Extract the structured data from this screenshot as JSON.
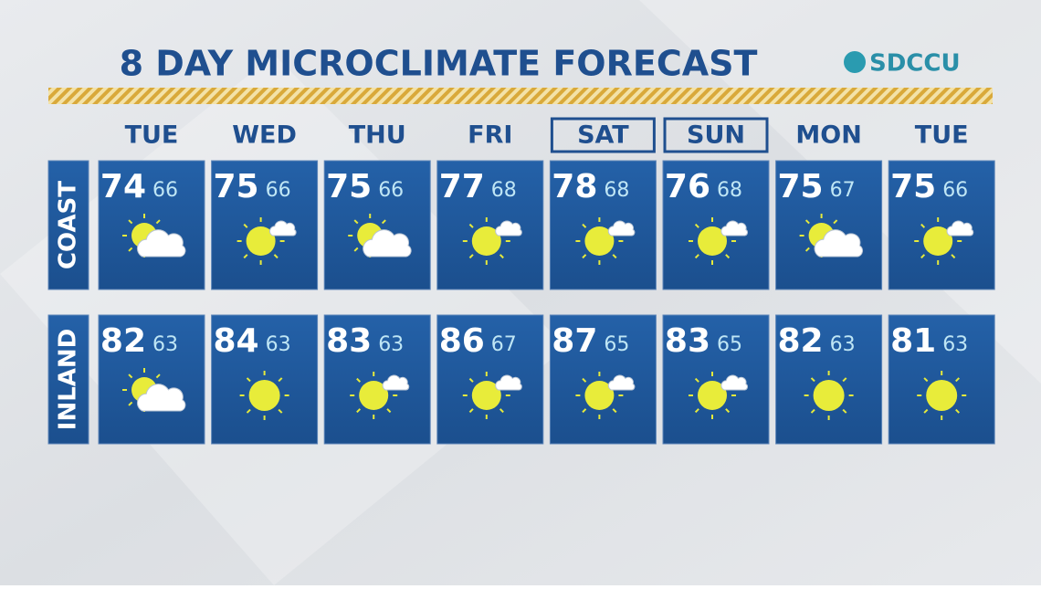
{
  "header": {
    "title": "8 DAY MICROCLIMATE FORECAST",
    "logo": "SDCCU"
  },
  "days": [
    "TUE",
    "WED",
    "THU",
    "FRI",
    "SAT",
    "SUN",
    "MON",
    "TUE"
  ],
  "rows": [
    {
      "label": "COAST",
      "highs": [
        74,
        75,
        75,
        77,
        78,
        76,
        75,
        75
      ],
      "lows": [
        66,
        66,
        66,
        68,
        68,
        68,
        67,
        66
      ]
    },
    {
      "label": "INLAND",
      "highs": [
        82,
        84,
        83,
        86,
        87,
        83,
        82,
        81
      ],
      "lows": [
        63,
        63,
        63,
        67,
        65,
        65,
        63,
        63
      ]
    }
  ]
}
